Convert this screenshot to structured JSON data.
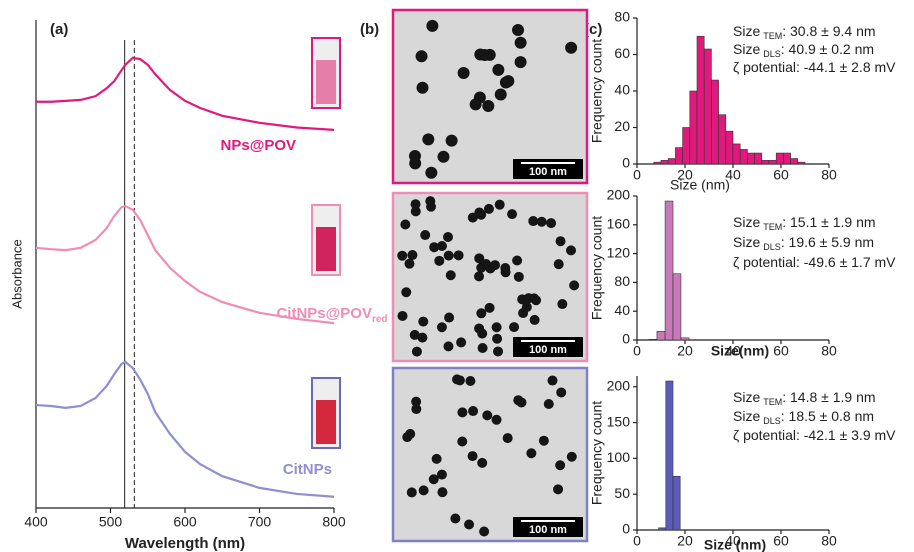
{
  "panel_labels": [
    "(a)",
    "(b)",
    "(c)"
  ],
  "tem_images": [
    {
      "scale_bar": "100 nm"
    },
    {
      "scale_bar": "100 nm"
    },
    {
      "scale_bar": "100 nm"
    }
  ],
  "chart_data": [
    {
      "type": "line",
      "x_label": "Wavelength (nm)",
      "y_label": "Absorbance",
      "x": [
        400,
        420,
        440,
        460,
        480,
        495,
        505,
        515,
        520,
        530,
        540,
        550,
        560,
        580,
        600,
        620,
        650,
        700,
        750,
        800
      ],
      "xlim": [
        400,
        800
      ],
      "xticks": [
        400,
        500,
        600,
        700,
        800
      ],
      "ylim": [
        0,
        100
      ],
      "vlines": [
        {
          "x": 519,
          "style": "solid"
        },
        {
          "x": 532,
          "style": "dashed"
        }
      ],
      "series": [
        {
          "name": "NPs@POV",
          "color": "#e0197d",
          "values": [
            86.8,
            86.8,
            87.0,
            87.2,
            88.0,
            89.7,
            91.2,
            93.6,
            94.7,
            96.2,
            95.9,
            94.7,
            92.7,
            89.3,
            87.0,
            85.5,
            83.8,
            82.3,
            81.3,
            80.8
          ]
        },
        {
          "name": "CitNPs@POV",
          "name_sub": "red",
          "color": "#f08cb5",
          "values": [
            55.6,
            55.3,
            55.1,
            55.6,
            57.3,
            59.8,
            62.4,
            64.3,
            64.5,
            63.7,
            61.5,
            58.3,
            55.1,
            51.3,
            48.5,
            46.2,
            44.0,
            41.7,
            40.4,
            39.5
          ]
        },
        {
          "name": "CitNPs",
          "color": "#8f8fd0",
          "values": [
            22.0,
            21.8,
            21.4,
            21.8,
            23.5,
            26.1,
            28.6,
            30.8,
            31.2,
            29.9,
            27.4,
            24.4,
            20.5,
            15.8,
            12.0,
            9.4,
            6.8,
            4.3,
            3.0,
            2.4
          ]
        }
      ]
    },
    {
      "type": "histogram",
      "x_label": "Size (nm)",
      "y_label": "Frequency count",
      "color": "#e0197d",
      "bins": [
        7,
        10,
        13,
        16,
        19,
        22,
        25,
        28,
        31,
        34,
        37,
        40,
        43,
        46,
        49,
        52,
        55,
        58,
        61,
        64,
        67,
        70
      ],
      "counts": [
        1,
        2,
        3,
        9,
        20,
        40,
        70,
        63,
        46,
        27,
        18,
        11,
        8,
        6,
        6,
        2,
        2,
        6,
        6,
        3,
        1
      ],
      "xlim": [
        0,
        80
      ],
      "xticks": [
        0,
        20,
        40,
        60,
        80
      ],
      "ylim": [
        0,
        80
      ],
      "yticks": [
        0,
        20,
        40,
        60,
        80
      ],
      "annotations": [
        {
          "label": "Size",
          "sub": "TEM",
          "rest": ": 30.8  ± 9.4 nm"
        },
        {
          "label": "Size",
          "sub": "DLS",
          "rest": ": 40.9  ± 0.2 nm"
        },
        {
          "label": "ζ potential: -44.1  ± 2.8 mV"
        }
      ]
    },
    {
      "type": "histogram",
      "x_label": "Size(nm)",
      "y_label": "Frequency count",
      "color": "#c87ab8",
      "bins": [
        5,
        8.3,
        11.7,
        15,
        18.3,
        21.7
      ],
      "counts": [
        1,
        12,
        193,
        92,
        3
      ],
      "xlim": [
        0,
        80
      ],
      "xticks": [
        0,
        20,
        40,
        60,
        80
      ],
      "ylim": [
        0,
        200
      ],
      "yticks": [
        0,
        40,
        80,
        120,
        160,
        200
      ],
      "annotations": [
        {
          "label": "Size",
          "sub": "TEM",
          "rest": ": 15.1  ± 1.9 nm"
        },
        {
          "label": "Size",
          "sub": "DLS",
          "rest": ": 19.6  ± 5.9 nm"
        },
        {
          "label": "ζ potential: -49.6 ± 1.7 mV"
        }
      ]
    },
    {
      "type": "histogram",
      "x_label": "Size (nm)",
      "y_label": "Frequency count",
      "color": "#5c5cb8",
      "bins": [
        9,
        12,
        15,
        18
      ],
      "counts": [
        3,
        208,
        75
      ],
      "xlim": [
        0,
        80
      ],
      "xticks": [
        0,
        20,
        40,
        60,
        80
      ],
      "ylim": [
        0,
        215
      ],
      "yticks": [
        0,
        50,
        100,
        150,
        200
      ],
      "annotations": [
        {
          "label": "Size",
          "sub": "TEM",
          "rest": ": 14.8  ± 1.9 nm"
        },
        {
          "label": "Size",
          "sub": "DLS",
          "rest": ": 18.5  ± 0.8 nm"
        },
        {
          "label": "ζ potential: -42.1  ± 3.9 mV"
        }
      ]
    }
  ]
}
